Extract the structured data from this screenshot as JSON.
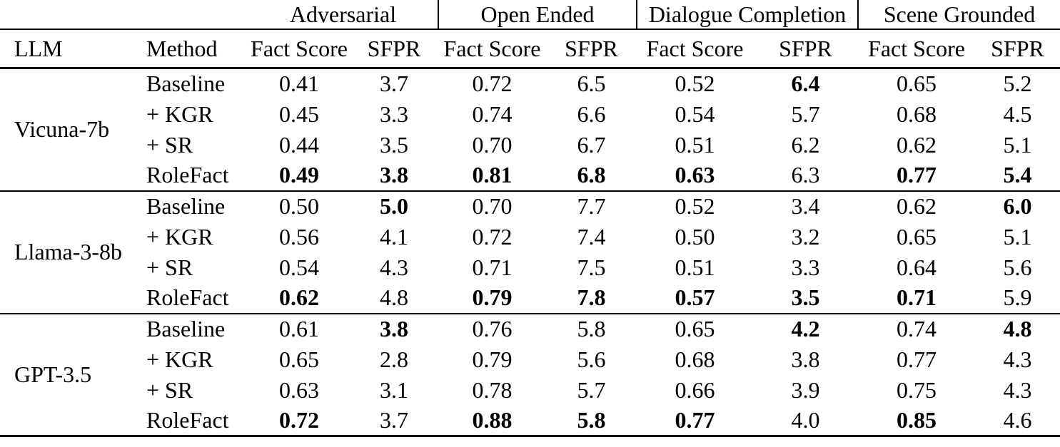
{
  "table": {
    "column_groups": [
      {
        "label": "Adversarial"
      },
      {
        "label": "Open Ended"
      },
      {
        "label": "Dialogue Completion"
      },
      {
        "label": "Scene Grounded"
      }
    ],
    "column_headers": {
      "llm": "LLM",
      "method": "Method",
      "fact_score": "Fact Score",
      "sfpr": "SFPR"
    },
    "groups": [
      {
        "llm": "Vicuna-7b",
        "rows": [
          {
            "method": "Baseline",
            "values": [
              "0.41",
              "3.7",
              "0.72",
              "6.5",
              "0.52",
              "6.4",
              "0.65",
              "5.2"
            ],
            "bold": [
              false,
              false,
              false,
              false,
              false,
              true,
              false,
              false
            ]
          },
          {
            "method": "+ KGR",
            "values": [
              "0.45",
              "3.3",
              "0.74",
              "6.6",
              "0.54",
              "5.7",
              "0.68",
              "4.5"
            ],
            "bold": [
              false,
              false,
              false,
              false,
              false,
              false,
              false,
              false
            ]
          },
          {
            "method": "+ SR",
            "values": [
              "0.44",
              "3.5",
              "0.70",
              "6.7",
              "0.51",
              "6.2",
              "0.62",
              "5.1"
            ],
            "bold": [
              false,
              false,
              false,
              false,
              false,
              false,
              false,
              false
            ]
          },
          {
            "method": "RoleFact",
            "values": [
              "0.49",
              "3.8",
              "0.81",
              "6.8",
              "0.63",
              "6.3",
              "0.77",
              "5.4"
            ],
            "bold": [
              true,
              true,
              true,
              true,
              true,
              false,
              true,
              true
            ]
          }
        ]
      },
      {
        "llm": "Llama-3-8b",
        "rows": [
          {
            "method": "Baseline",
            "values": [
              "0.50",
              "5.0",
              "0.70",
              "7.7",
              "0.52",
              "3.4",
              "0.62",
              "6.0"
            ],
            "bold": [
              false,
              true,
              false,
              false,
              false,
              false,
              false,
              true
            ]
          },
          {
            "method": "+ KGR",
            "values": [
              "0.56",
              "4.1",
              "0.72",
              "7.4",
              "0.50",
              "3.2",
              "0.65",
              "5.1"
            ],
            "bold": [
              false,
              false,
              false,
              false,
              false,
              false,
              false,
              false
            ]
          },
          {
            "method": "+ SR",
            "values": [
              "0.54",
              "4.3",
              "0.71",
              "7.5",
              "0.51",
              "3.3",
              "0.64",
              "5.6"
            ],
            "bold": [
              false,
              false,
              false,
              false,
              false,
              false,
              false,
              false
            ]
          },
          {
            "method": "RoleFact",
            "values": [
              "0.62",
              "4.8",
              "0.79",
              "7.8",
              "0.57",
              "3.5",
              "0.71",
              "5.9"
            ],
            "bold": [
              true,
              false,
              true,
              true,
              true,
              true,
              true,
              false
            ]
          }
        ]
      },
      {
        "llm": "GPT-3.5",
        "rows": [
          {
            "method": "Baseline",
            "values": [
              "0.61",
              "3.8",
              "0.76",
              "5.8",
              "0.65",
              "4.2",
              "0.74",
              "4.8"
            ],
            "bold": [
              false,
              true,
              false,
              false,
              false,
              true,
              false,
              true
            ]
          },
          {
            "method": "+ KGR",
            "values": [
              "0.65",
              "2.8",
              "0.79",
              "5.6",
              "0.68",
              "3.8",
              "0.77",
              "4.3"
            ],
            "bold": [
              false,
              false,
              false,
              false,
              false,
              false,
              false,
              false
            ]
          },
          {
            "method": "+ SR",
            "values": [
              "0.63",
              "3.1",
              "0.78",
              "5.7",
              "0.66",
              "3.9",
              "0.75",
              "4.3"
            ],
            "bold": [
              false,
              false,
              false,
              false,
              false,
              false,
              false,
              false
            ]
          },
          {
            "method": "RoleFact",
            "values": [
              "0.72",
              "3.7",
              "0.88",
              "5.8",
              "0.77",
              "4.0",
              "0.85",
              "4.6"
            ],
            "bold": [
              true,
              false,
              true,
              true,
              true,
              false,
              true,
              false
            ]
          }
        ]
      }
    ]
  },
  "colors": {
    "text": "#000000",
    "background": "#ffffff",
    "rule": "#000000"
  }
}
